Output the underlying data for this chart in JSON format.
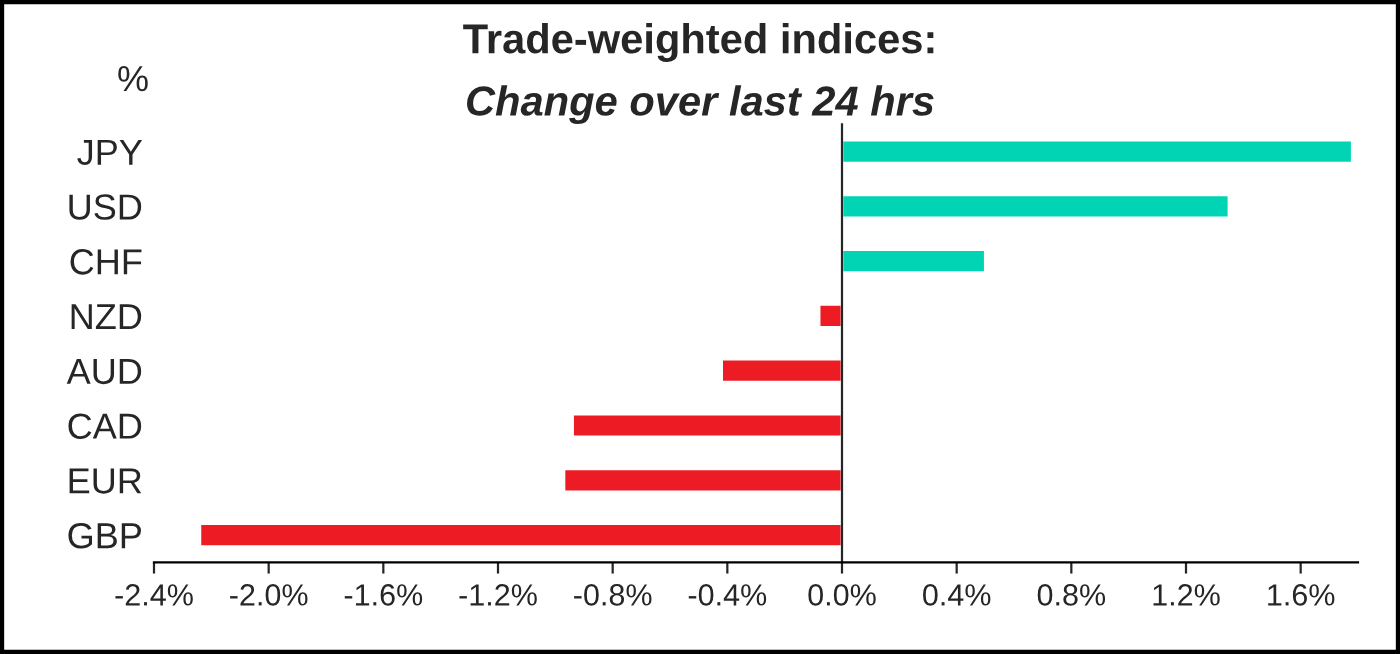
{
  "chart_data": {
    "type": "bar",
    "orientation": "horizontal",
    "title": "Trade-weighted indices:",
    "subtitle": "Change over last 24 hrs",
    "ylabel": "%",
    "categories": [
      "JPY",
      "USD",
      "CHF",
      "NZD",
      "AUD",
      "CAD",
      "EUR",
      "GBP"
    ],
    "values": [
      1.78,
      1.35,
      0.5,
      -0.08,
      -0.42,
      -0.94,
      -0.97,
      -2.24
    ],
    "colors": [
      "#00d4b4",
      "#00d4b4",
      "#00d4b4",
      "#ed1c24",
      "#ed1c24",
      "#ed1c24",
      "#ed1c24",
      "#ed1c24"
    ],
    "xlim": [
      -2.4,
      1.8
    ],
    "xticks": [
      {
        "value": -2.4,
        "label": "-2.4%"
      },
      {
        "value": -2.0,
        "label": "-2.0%"
      },
      {
        "value": -1.6,
        "label": "-1.6%"
      },
      {
        "value": -1.2,
        "label": "-1.2%"
      },
      {
        "value": -0.8,
        "label": "-0.8%"
      },
      {
        "value": -0.4,
        "label": "-0.4%"
      },
      {
        "value": 0.0,
        "label": "0.0%"
      },
      {
        "value": 0.4,
        "label": "0.4%"
      },
      {
        "value": 0.8,
        "label": "0.8%"
      },
      {
        "value": 1.2,
        "label": "1.2%"
      },
      {
        "value": 1.6,
        "label": "1.6%"
      }
    ],
    "legend": false
  }
}
